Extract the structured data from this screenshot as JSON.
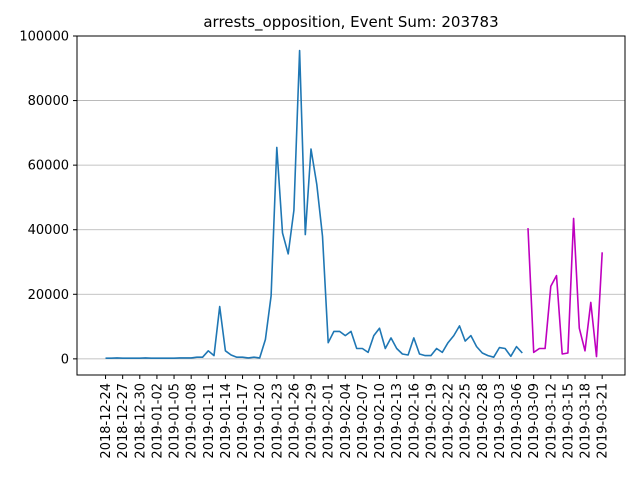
{
  "chart_data": {
    "type": "line",
    "title": "arrests_opposition, Event Sum: 203783",
    "xlabel": "",
    "ylabel": "",
    "ylim": [
      -5000,
      100000
    ],
    "yticks": [
      0,
      20000,
      40000,
      60000,
      80000,
      100000
    ],
    "grid": "horizontal",
    "legend": "none",
    "xticks": [
      "2018-12-24",
      "2018-12-27",
      "2018-12-30",
      "2019-01-02",
      "2019-01-05",
      "2019-01-08",
      "2019-01-11",
      "2019-01-14",
      "2019-01-17",
      "2019-01-20",
      "2019-01-23",
      "2019-01-26",
      "2019-01-29",
      "2019-02-01",
      "2019-02-04",
      "2019-02-07",
      "2019-02-10",
      "2019-02-13",
      "2019-02-16",
      "2019-02-19",
      "2019-02-22",
      "2019-02-25",
      "2019-02-28",
      "2019-03-03",
      "2019-03-06",
      "2019-03-09",
      "2019-03-12",
      "2019-03-15",
      "2019-03-18",
      "2019-03-21"
    ],
    "xlim": [
      "2018-12-19",
      "2019-03-25"
    ],
    "series": [
      {
        "color": "#1f77b4",
        "points": [
          [
            "2018-12-24",
            200
          ],
          [
            "2018-12-25",
            200
          ],
          [
            "2018-12-26",
            300
          ],
          [
            "2018-12-27",
            200
          ],
          [
            "2018-12-28",
            200
          ],
          [
            "2018-12-29",
            200
          ],
          [
            "2018-12-30",
            200
          ],
          [
            "2018-12-31",
            300
          ],
          [
            "2019-01-01",
            200
          ],
          [
            "2019-01-02",
            200
          ],
          [
            "2019-01-03",
            200
          ],
          [
            "2019-01-04",
            200
          ],
          [
            "2019-01-05",
            200
          ],
          [
            "2019-01-06",
            300
          ],
          [
            "2019-01-07",
            300
          ],
          [
            "2019-01-08",
            300
          ],
          [
            "2019-01-09",
            500
          ],
          [
            "2019-01-10",
            500
          ],
          [
            "2019-01-11",
            2500
          ],
          [
            "2019-01-12",
            1000
          ],
          [
            "2019-01-13",
            16200
          ],
          [
            "2019-01-14",
            2500
          ],
          [
            "2019-01-15",
            1200
          ],
          [
            "2019-01-16",
            500
          ],
          [
            "2019-01-17",
            500
          ],
          [
            "2019-01-18",
            300
          ],
          [
            "2019-01-19",
            500
          ],
          [
            "2019-01-20",
            300
          ],
          [
            "2019-01-21",
            6000
          ],
          [
            "2019-01-22",
            19500
          ],
          [
            "2019-01-23",
            65500
          ],
          [
            "2019-01-24",
            39000
          ],
          [
            "2019-01-25",
            32500
          ],
          [
            "2019-01-26",
            46000
          ],
          [
            "2019-01-27",
            95500
          ],
          [
            "2019-01-28",
            38500
          ],
          [
            "2019-01-29",
            65000
          ],
          [
            "2019-01-30",
            54000
          ],
          [
            "2019-01-31",
            38000
          ],
          [
            "2019-02-01",
            5000
          ],
          [
            "2019-02-02",
            8500
          ],
          [
            "2019-02-03",
            8500
          ],
          [
            "2019-02-04",
            7200
          ],
          [
            "2019-02-05",
            8500
          ],
          [
            "2019-02-06",
            3200
          ],
          [
            "2019-02-07",
            3200
          ],
          [
            "2019-02-08",
            2000
          ],
          [
            "2019-02-09",
            7200
          ],
          [
            "2019-02-10",
            9500
          ],
          [
            "2019-02-11",
            3200
          ],
          [
            "2019-02-12",
            6500
          ],
          [
            "2019-02-13",
            3200
          ],
          [
            "2019-02-14",
            1500
          ],
          [
            "2019-02-15",
            1200
          ],
          [
            "2019-02-16",
            6500
          ],
          [
            "2019-02-17",
            1500
          ],
          [
            "2019-02-18",
            1000
          ],
          [
            "2019-02-19",
            1000
          ],
          [
            "2019-02-20",
            3200
          ],
          [
            "2019-02-21",
            2000
          ],
          [
            "2019-02-22",
            5000
          ],
          [
            "2019-02-23",
            7200
          ],
          [
            "2019-02-24",
            10200
          ],
          [
            "2019-02-25",
            5500
          ],
          [
            "2019-02-26",
            7200
          ],
          [
            "2019-02-27",
            3800
          ],
          [
            "2019-02-28",
            1800
          ],
          [
            "2019-03-01",
            1000
          ],
          [
            "2019-03-02",
            500
          ],
          [
            "2019-03-03",
            3500
          ],
          [
            "2019-03-04",
            3200
          ],
          [
            "2019-03-05",
            800
          ],
          [
            "2019-03-06",
            3800
          ],
          [
            "2019-03-07",
            1800
          ]
        ]
      },
      {
        "color": "#bf00bf",
        "points": [
          [
            "2019-03-08",
            40500
          ],
          [
            "2019-03-09",
            2000
          ],
          [
            "2019-03-10",
            3200
          ],
          [
            "2019-03-11",
            3200
          ],
          [
            "2019-03-12",
            22500
          ],
          [
            "2019-03-13",
            25800
          ],
          [
            "2019-03-14",
            1500
          ],
          [
            "2019-03-15",
            1800
          ],
          [
            "2019-03-16",
            43500
          ],
          [
            "2019-03-17",
            9500
          ],
          [
            "2019-03-18",
            2500
          ],
          [
            "2019-03-19",
            17500
          ],
          [
            "2019-03-20",
            700
          ],
          [
            "2019-03-21",
            33000
          ]
        ]
      }
    ]
  }
}
